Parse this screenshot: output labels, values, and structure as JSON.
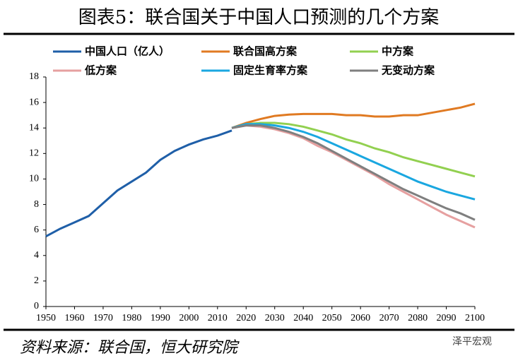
{
  "chart_data": {
    "type": "line",
    "title": "图表5：联合国关于中国人口预测的几个方案",
    "x": [
      1950,
      1955,
      1960,
      1965,
      1970,
      1975,
      1980,
      1985,
      1990,
      1995,
      2000,
      2005,
      2010,
      2015,
      2020,
      2025,
      2030,
      2035,
      2040,
      2045,
      2050,
      2055,
      2060,
      2065,
      2070,
      2075,
      2080,
      2085,
      2090,
      2095,
      2100
    ],
    "series": [
      {
        "name": "中国人口（亿人）",
        "color": "#1f5fa8",
        "values": [
          5.5,
          6.1,
          6.6,
          7.1,
          8.1,
          9.1,
          9.8,
          10.5,
          11.5,
          12.2,
          12.7,
          13.1,
          13.4,
          13.8,
          null,
          null,
          null,
          null,
          null,
          null,
          null,
          null,
          null,
          null,
          null,
          null,
          null,
          null,
          null,
          null,
          null
        ]
      },
      {
        "name": "联合国高方案",
        "color": "#e07a22",
        "values": [
          null,
          null,
          null,
          null,
          null,
          null,
          null,
          null,
          null,
          null,
          null,
          null,
          null,
          14.0,
          14.4,
          14.7,
          14.95,
          15.05,
          15.1,
          15.1,
          15.1,
          15.0,
          15.0,
          14.9,
          14.9,
          15.0,
          15.0,
          15.2,
          15.4,
          15.6,
          15.9
        ]
      },
      {
        "name": "中方案",
        "color": "#92d050",
        "values": [
          null,
          null,
          null,
          null,
          null,
          null,
          null,
          null,
          null,
          null,
          null,
          null,
          null,
          14.0,
          14.3,
          14.4,
          14.4,
          14.3,
          14.1,
          13.8,
          13.5,
          13.1,
          12.8,
          12.4,
          12.1,
          11.7,
          11.4,
          11.1,
          10.8,
          10.5,
          10.2
        ]
      },
      {
        "name": "低方案",
        "color": "#e6a0a0",
        "values": [
          null,
          null,
          null,
          null,
          null,
          null,
          null,
          null,
          null,
          null,
          null,
          null,
          null,
          14.0,
          14.2,
          14.1,
          13.9,
          13.6,
          13.2,
          12.6,
          12.1,
          11.5,
          10.9,
          10.3,
          9.6,
          9.0,
          8.4,
          7.8,
          7.2,
          6.7,
          6.2
        ]
      },
      {
        "name": "固定生育率方案",
        "color": "#1aa7e0",
        "values": [
          null,
          null,
          null,
          null,
          null,
          null,
          null,
          null,
          null,
          null,
          null,
          null,
          null,
          14.0,
          14.3,
          14.3,
          14.2,
          14.0,
          13.7,
          13.3,
          12.8,
          12.3,
          11.8,
          11.3,
          10.8,
          10.3,
          9.8,
          9.4,
          9.0,
          8.7,
          8.4
        ]
      },
      {
        "name": "无变动方案",
        "color": "#7f7f7f",
        "values": [
          null,
          null,
          null,
          null,
          null,
          null,
          null,
          null,
          null,
          null,
          null,
          null,
          null,
          14.0,
          14.2,
          14.2,
          14.0,
          13.7,
          13.3,
          12.8,
          12.2,
          11.6,
          11.0,
          10.4,
          9.8,
          9.2,
          8.7,
          8.2,
          7.7,
          7.3,
          6.8
        ]
      }
    ],
    "xlim": [
      1950,
      2100
    ],
    "xticks": [
      1950,
      1960,
      1970,
      1980,
      1990,
      2000,
      2010,
      2020,
      2030,
      2040,
      2050,
      2060,
      2070,
      2080,
      2090,
      2100
    ],
    "ylim": [
      0,
      18
    ],
    "yticks": [
      0,
      2,
      4,
      6,
      8,
      10,
      12,
      14,
      16,
      18
    ],
    "grid": false
  },
  "source": "资料来源：联合国，恒大研究院",
  "watermark": "泽平宏观"
}
